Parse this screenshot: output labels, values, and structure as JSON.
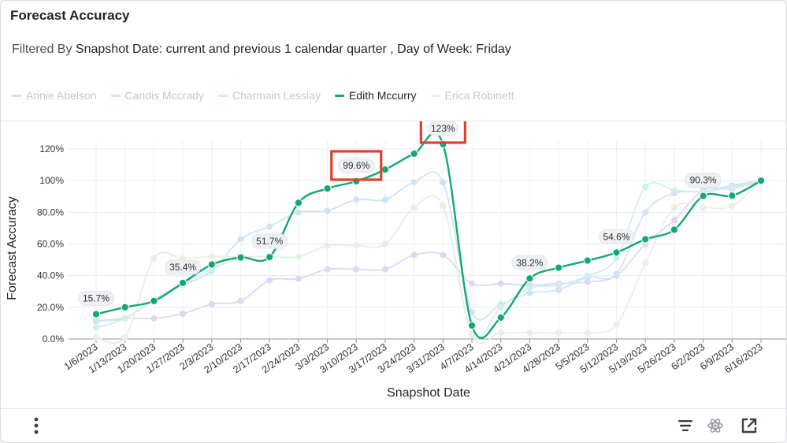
{
  "card": {
    "title": "Forecast Accuracy",
    "filter_prefix": "Filtered By",
    "filter_text": "Snapshot Date: current and previous 1 calendar quarter , Day of Week: Friday"
  },
  "legend": [
    {
      "label": "Annie Abelson",
      "color": "#ddd8ef",
      "active": false
    },
    {
      "label": "Candis Mccrady",
      "color": "#cfe3f6",
      "active": false
    },
    {
      "label": "Charmain Lesslay",
      "color": "#cdeff0",
      "active": false
    },
    {
      "label": "Edith Mccurry",
      "color": "#13a872",
      "active": true
    },
    {
      "label": "Erica Robinett",
      "color": "#e8f0e2",
      "active": false
    }
  ],
  "footer": {
    "more_icon": "vertical-ellipsis-icon",
    "sort_icon": "sort-lines-icon",
    "ai_icon": "atom-icon",
    "open_icon": "open-external-icon"
  },
  "chart_data": {
    "type": "line",
    "title": "",
    "xlabel": "Snapshot Date",
    "ylabel": "Forecast Accuracy",
    "ylim": [
      0,
      130
    ],
    "yticks": [
      0,
      20,
      40,
      60,
      80,
      100,
      120
    ],
    "ytick_labels": [
      "0.0%",
      "20.0%",
      "40.0%",
      "60.0%",
      "80.0%",
      "100%",
      "120%"
    ],
    "categories": [
      "1/6/2023",
      "1/13/2023",
      "1/20/2023",
      "1/27/2023",
      "2/3/2023",
      "2/10/2023",
      "2/17/2023",
      "2/24/2023",
      "3/3/2023",
      "3/10/2023",
      "3/17/2023",
      "3/24/2023",
      "3/31/2023",
      "4/7/2023",
      "4/14/2023",
      "4/21/2023",
      "4/28/2023",
      "5/5/2023",
      "5/12/2023",
      "5/19/2023",
      "5/26/2023",
      "6/2/2023",
      "6/9/2023",
      "6/16/2023"
    ],
    "series": [
      {
        "name": "Edith Mccurry",
        "color": "#13a872",
        "highlighted": true,
        "values": [
          15.7,
          20,
          24,
          35.4,
          47,
          51.5,
          51.7,
          86,
          95,
          99.6,
          107,
          117,
          123,
          8.5,
          13.5,
          38.2,
          45,
          49.5,
          54.6,
          63,
          69,
          90.3,
          90.5,
          100
        ]
      },
      {
        "name": "Annie Abelson",
        "color": "#ddd8ef",
        "highlighted": false,
        "values": [
          11,
          13,
          13,
          16,
          22,
          24,
          37,
          38,
          44,
          44,
          44,
          53,
          53,
          35,
          35,
          34,
          35,
          36,
          40,
          60,
          75,
          94,
          95,
          100
        ]
      },
      {
        "name": "Candis Mccrady",
        "color": "#cfe3f6",
        "highlighted": false,
        "values": [
          12,
          13,
          25,
          34,
          43,
          63,
          71,
          80,
          81,
          88,
          88,
          99,
          99,
          17,
          22,
          29,
          31,
          39,
          41,
          80,
          92,
          93,
          97,
          100
        ]
      },
      {
        "name": "Charmain Lesslay",
        "color": "#cdeff0",
        "highlighted": false,
        "values": [
          7,
          13,
          25,
          35,
          44,
          51,
          52,
          52,
          59,
          59,
          60,
          83,
          84,
          3,
          20,
          32,
          34,
          40,
          51,
          96,
          94,
          93,
          96,
          100
        ]
      },
      {
        "name": "Erica Robinett",
        "color": "#e8f0e2",
        "highlighted": false,
        "values": [
          1,
          1,
          51,
          51,
          52,
          52,
          52,
          52,
          59,
          59,
          60,
          83,
          84,
          3,
          4,
          4,
          4,
          4,
          9,
          48,
          83,
          83,
          84,
          100
        ]
      }
    ],
    "data_labels": [
      {
        "index": 0,
        "text": "15.7%",
        "boxed": false
      },
      {
        "index": 3,
        "text": "35.4%",
        "boxed": false
      },
      {
        "index": 6,
        "text": "51.7%",
        "boxed": false
      },
      {
        "index": 9,
        "text": "99.6%",
        "boxed": true
      },
      {
        "index": 12,
        "text": "123%",
        "boxed": true
      },
      {
        "index": 15,
        "text": "38.2%",
        "boxed": false
      },
      {
        "index": 18,
        "text": "54.6%",
        "boxed": false
      },
      {
        "index": 21,
        "text": "90.3%",
        "boxed": false
      }
    ]
  }
}
